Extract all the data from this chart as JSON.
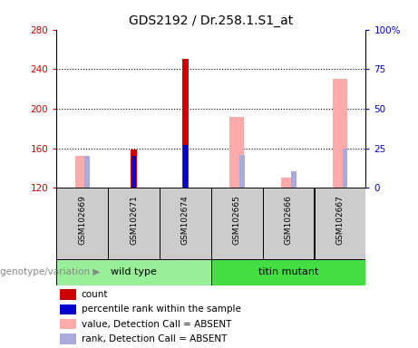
{
  "title": "GDS2192 / Dr.258.1.S1_at",
  "samples": [
    "GSM102669",
    "GSM102671",
    "GSM102674",
    "GSM102665",
    "GSM102666",
    "GSM102667"
  ],
  "ylim_left": [
    120,
    280
  ],
  "ylim_right": [
    0,
    100
  ],
  "yticks_left": [
    120,
    160,
    200,
    240,
    280
  ],
  "yticks_right": [
    0,
    25,
    50,
    75,
    100
  ],
  "ybase": 120,
  "bars": [
    {
      "x": 0,
      "count": null,
      "percentile": null,
      "value_absent": 152,
      "rank_absent": 152
    },
    {
      "x": 1,
      "count": 159,
      "percentile": 152,
      "value_absent": null,
      "rank_absent": null
    },
    {
      "x": 2,
      "count": 250,
      "percentile": 163,
      "value_absent": null,
      "rank_absent": null
    },
    {
      "x": 3,
      "count": null,
      "percentile": null,
      "value_absent": 192,
      "rank_absent": 153
    },
    {
      "x": 4,
      "count": null,
      "percentile": null,
      "value_absent": 130,
      "rank_absent": 137
    },
    {
      "x": 5,
      "count": null,
      "percentile": null,
      "value_absent": 230,
      "rank_absent": 160
    }
  ],
  "count_color": "#cc0000",
  "percentile_color": "#0000cc",
  "value_absent_color": "#ffaaaa",
  "rank_absent_color": "#aaaadd",
  "left_tick_color": "#cc0000",
  "right_tick_color": "#0000cc",
  "sample_area_color": "#cccccc",
  "genotype_label": "genotype/variation",
  "group_ranges": [
    {
      "name": "wild type",
      "xmin": -0.5,
      "xmax": 2.5,
      "color": "#99ee99"
    },
    {
      "name": "titin mutant",
      "xmin": 2.5,
      "xmax": 5.5,
      "color": "#44dd44"
    }
  ],
  "legend_items": [
    {
      "label": "count",
      "color": "#cc0000"
    },
    {
      "label": "percentile rank within the sample",
      "color": "#0000cc"
    },
    {
      "label": "value, Detection Call = ABSENT",
      "color": "#ffaaaa"
    },
    {
      "label": "rank, Detection Call = ABSENT",
      "color": "#aaaadd"
    }
  ],
  "dotted_lines": [
    160,
    200,
    240
  ]
}
